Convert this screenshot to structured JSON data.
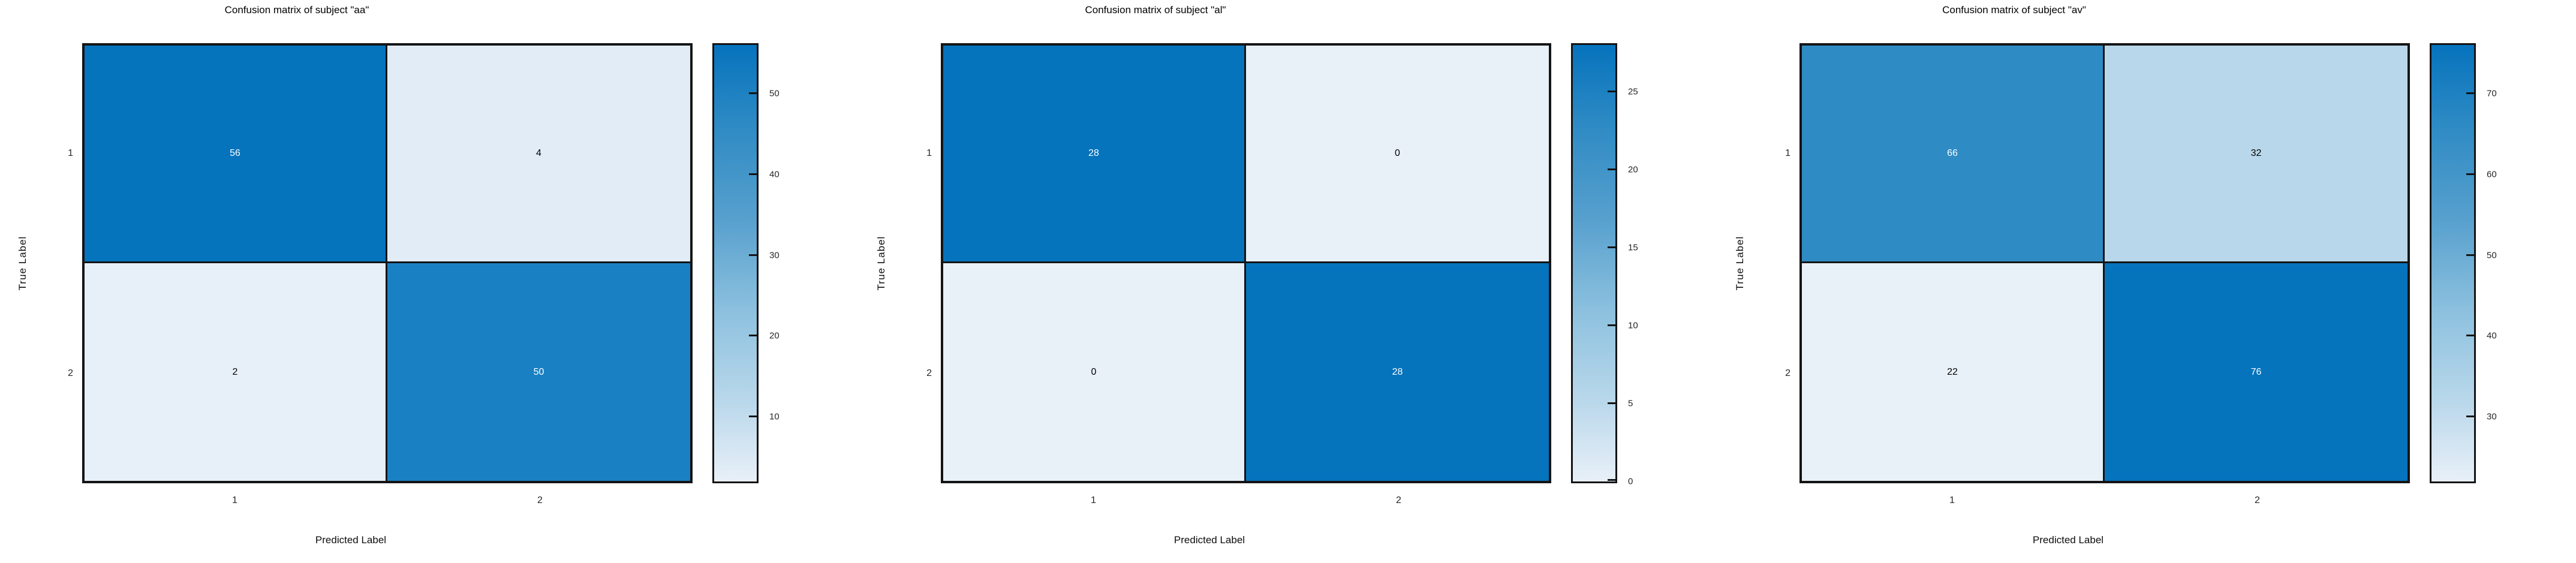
{
  "figure": {
    "xlabel": "Predicted Label",
    "ylabel": "True Label",
    "colors": {
      "background": "#ffffff",
      "grid_line": "#141414",
      "tick_text": "#262626",
      "colorbar_gradient_stops": [
        [
          "0%",
          "#e8f0f8"
        ],
        [
          "18%",
          "#bad8eb"
        ],
        [
          "38%",
          "#8fc2df"
        ],
        [
          "60%",
          "#57a0ce"
        ],
        [
          "81%",
          "#2f8bc4"
        ],
        [
          "100%",
          "#0673bd"
        ]
      ]
    },
    "panels": [
      {
        "title": "Confusion matrix of subject \"aa\"",
        "xlabel": "Predicted Label",
        "ylabel": "True Label",
        "xticklabels": [
          "1",
          "2"
        ],
        "yticklabels": [
          "1",
          "2"
        ],
        "matrix": [
          [
            56,
            4
          ],
          [
            2,
            50
          ]
        ],
        "cell_colors": [
          [
            "#0673bd",
            "#e1ecf6"
          ],
          [
            "#e7eff8",
            "#1a80c4"
          ]
        ],
        "cell_text_colors": [
          [
            "#ffffff",
            "#000000"
          ],
          [
            "#000000",
            "#ffffff"
          ]
        ],
        "colorbar": {
          "vmin": 2,
          "vmax": 56,
          "ticks": [
            50,
            40,
            30,
            20,
            10
          ]
        }
      },
      {
        "title": "Confusion matrix of subject \"al\"",
        "xlabel": "Predicted Label",
        "ylabel": "True Label",
        "xticklabels": [
          "1",
          "2"
        ],
        "yticklabels": [
          "1",
          "2"
        ],
        "matrix": [
          [
            28,
            0
          ],
          [
            0,
            28
          ]
        ],
        "cell_colors": [
          [
            "#0673bd",
            "#e8f0f8"
          ],
          [
            "#e8f0f8",
            "#0673bd"
          ]
        ],
        "cell_text_colors": [
          [
            "#ffffff",
            "#000000"
          ],
          [
            "#000000",
            "#ffffff"
          ]
        ],
        "colorbar": {
          "vmin": 0,
          "vmax": 28,
          "ticks": [
            25,
            20,
            15,
            10,
            5,
            0
          ]
        }
      },
      {
        "title": "Confusion matrix of subject \"av\"",
        "xlabel": "Predicted Label",
        "ylabel": "True Label",
        "xticklabels": [
          "1",
          "2"
        ],
        "yticklabels": [
          "1",
          "2"
        ],
        "matrix": [
          [
            66,
            32
          ],
          [
            22,
            76
          ]
        ],
        "cell_colors": [
          [
            "#2f8bc4",
            "#b9d7ea"
          ],
          [
            "#e8f0f8",
            "#0673bd"
          ]
        ],
        "cell_text_colors": [
          [
            "#ffffff",
            "#000000"
          ],
          [
            "#000000",
            "#ffffff"
          ]
        ],
        "colorbar": {
          "vmin": 22,
          "vmax": 76,
          "ticks": [
            70,
            60,
            50,
            40,
            30
          ]
        }
      }
    ]
  },
  "chart_data": [
    {
      "type": "heatmap",
      "title": "Confusion matrix of subject \"aa\"",
      "xlabel": "Predicted Label",
      "ylabel": "True Label",
      "x_categories": [
        "1",
        "2"
      ],
      "y_categories": [
        "1",
        "2"
      ],
      "values": [
        [
          56,
          4
        ],
        [
          2,
          50
        ]
      ],
      "vmin": 2,
      "vmax": 56,
      "colorbar_ticks": [
        10,
        20,
        30,
        40,
        50
      ],
      "colormap": "Blues",
      "legend_position": "right-colorbar",
      "grid": false
    },
    {
      "type": "heatmap",
      "title": "Confusion matrix of subject \"al\"",
      "xlabel": "Predicted Label",
      "ylabel": "True Label",
      "x_categories": [
        "1",
        "2"
      ],
      "y_categories": [
        "1",
        "2"
      ],
      "values": [
        [
          28,
          0
        ],
        [
          0,
          28
        ]
      ],
      "vmin": 0,
      "vmax": 28,
      "colorbar_ticks": [
        0,
        5,
        10,
        15,
        20,
        25
      ],
      "colormap": "Blues",
      "legend_position": "right-colorbar",
      "grid": false
    },
    {
      "type": "heatmap",
      "title": "Confusion matrix of subject \"av\"",
      "xlabel": "Predicted Label",
      "ylabel": "True Label",
      "x_categories": [
        "1",
        "2"
      ],
      "y_categories": [
        "1",
        "2"
      ],
      "values": [
        [
          66,
          32
        ],
        [
          22,
          76
        ]
      ],
      "vmin": 22,
      "vmax": 76,
      "colorbar_ticks": [
        30,
        40,
        50,
        60,
        70
      ],
      "colormap": "Blues",
      "legend_position": "right-colorbar",
      "grid": false
    }
  ]
}
